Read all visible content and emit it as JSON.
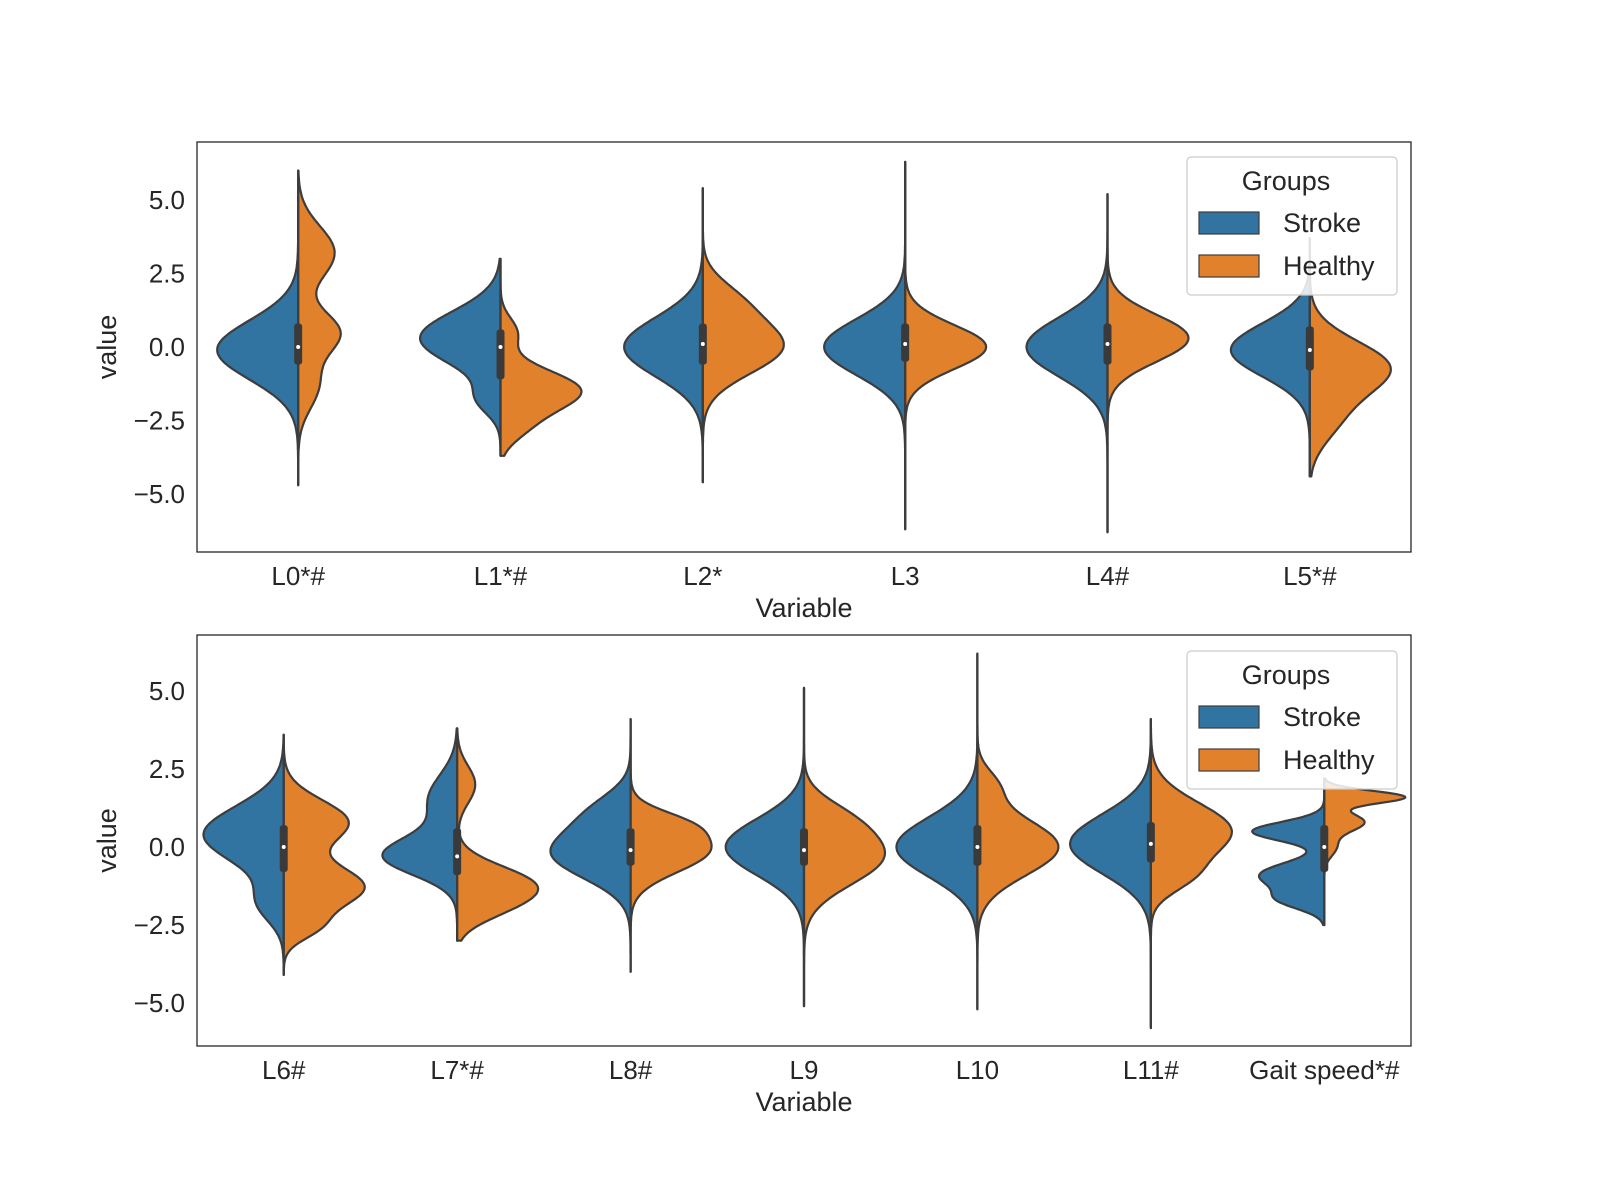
{
  "colors": {
    "stroke": "#3274a1",
    "healthy": "#e1812c",
    "outline": "#3d3d3d",
    "frame": "#262626"
  },
  "chart_data": [
    {
      "type": "violin",
      "xlabel": "Variable",
      "ylabel": "value",
      "ylim": [
        -6.8,
        6.9
      ],
      "yticks": [
        5.0,
        2.5,
        0.0,
        -2.5,
        -5.0
      ],
      "ytick_labels": [
        "5.0",
        "2.5",
        "0.0",
        "−2.5",
        "−5.0"
      ],
      "categories": [
        "L0*#",
        "L1*#",
        "L2*",
        "L3",
        "L4#",
        "L5*#"
      ],
      "legend": {
        "title": "Groups",
        "position": "upper right",
        "entries": [
          "Stroke",
          "Healthy"
        ]
      },
      "series": [
        {
          "name": "Stroke",
          "violins": [
            {
              "min": -4.7,
              "max": 6.0,
              "peaks": [
                [
                  -0.1,
                  1.0,
                  1.0
                ]
              ]
            },
            {
              "min": -3.7,
              "max": 3.0,
              "peaks": [
                [
                  0.3,
                  0.9,
                  1.0
                ],
                [
                  -1.8,
                  0.5,
                  0.25
                ]
              ]
            },
            {
              "min": -4.6,
              "max": 5.4,
              "peaks": [
                [
                  0.0,
                  1.0,
                  1.0
                ]
              ]
            },
            {
              "min": -6.2,
              "max": 6.3,
              "peaks": [
                [
                  0.0,
                  0.95,
                  1.0
                ]
              ]
            },
            {
              "min": -6.3,
              "max": 5.2,
              "peaks": [
                [
                  0.0,
                  1.0,
                  1.0
                ]
              ]
            },
            {
              "min": -4.4,
              "max": 3.7,
              "peaks": [
                [
                  -0.1,
                  0.9,
                  1.0
                ]
              ]
            }
          ],
          "box": [
            [
              -0.6,
              0.0,
              0.8
            ],
            [
              -1.1,
              0.0,
              0.6
            ],
            [
              -0.6,
              0.1,
              0.8
            ],
            [
              -0.5,
              0.1,
              0.8
            ],
            [
              -0.6,
              0.1,
              0.8
            ],
            [
              -0.8,
              -0.1,
              0.7
            ]
          ]
        },
        {
          "name": "Healthy",
          "violins": [
            {
              "min": -4.7,
              "max": 6.0,
              "peaks": [
                [
                  0.5,
                  0.7,
                  0.5
                ],
                [
                  3.2,
                  0.9,
                  0.45
                ],
                [
                  -1.3,
                  0.8,
                  0.25
                ]
              ]
            },
            {
              "min": -3.7,
              "max": 3.0,
              "peaks": [
                [
                  -1.5,
                  0.7,
                  1.0
                ],
                [
                  0.5,
                  0.5,
                  0.2
                ],
                [
                  -2.8,
                  0.5,
                  0.2
                ]
              ]
            },
            {
              "min": -4.6,
              "max": 5.4,
              "peaks": [
                [
                  0.0,
                  0.9,
                  1.0
                ],
                [
                  1.6,
                  0.7,
                  0.35
                ]
              ]
            },
            {
              "min": -6.2,
              "max": 6.3,
              "peaks": [
                [
                  0.0,
                  0.75,
                  1.0
                ]
              ]
            },
            {
              "min": -6.3,
              "max": 5.2,
              "peaks": [
                [
                  0.3,
                  0.8,
                  1.0
                ]
              ]
            },
            {
              "min": -4.4,
              "max": 3.7,
              "peaks": [
                [
                  -0.7,
                  0.9,
                  1.0
                ],
                [
                  -2.5,
                  0.8,
                  0.3
                ]
              ]
            }
          ]
        }
      ]
    },
    {
      "type": "violin",
      "xlabel": "Variable",
      "ylabel": "value",
      "ylim": [
        -6.3,
        6.5
      ],
      "yticks": [
        5.0,
        2.5,
        0.0,
        -2.5,
        -5.0
      ],
      "ytick_labels": [
        "5.0",
        "2.5",
        "0.0",
        "−2.5",
        "−5.0"
      ],
      "categories": [
        "L6#",
        "L7*#",
        "L8#",
        "L9",
        "L10",
        "L11#",
        "Gait speed*#"
      ],
      "legend": {
        "title": "Groups",
        "position": "upper right",
        "entries": [
          "Stroke",
          "Healthy"
        ]
      },
      "series": [
        {
          "name": "Stroke",
          "violins": [
            {
              "min": -4.1,
              "max": 3.6,
              "peaks": [
                [
                  0.4,
                  0.9,
                  1.0
                ],
                [
                  -1.8,
                  0.6,
                  0.3
                ]
              ]
            },
            {
              "min": -3.0,
              "max": 3.8,
              "peaks": [
                [
                  -0.3,
                  0.6,
                  1.0
                ],
                [
                  1.5,
                  0.8,
                  0.4
                ]
              ]
            },
            {
              "min": -4.0,
              "max": 4.1,
              "peaks": [
                [
                  -0.2,
                  0.8,
                  1.0
                ],
                [
                  1.2,
                  0.6,
                  0.35
                ]
              ]
            },
            {
              "min": -5.1,
              "max": 5.1,
              "peaks": [
                [
                  0.0,
                  0.9,
                  1.0
                ]
              ]
            },
            {
              "min": -5.2,
              "max": 6.2,
              "peaks": [
                [
                  0.0,
                  0.95,
                  1.0
                ]
              ]
            },
            {
              "min": -5.8,
              "max": 4.1,
              "peaks": [
                [
                  0.1,
                  0.95,
                  1.0
                ]
              ]
            },
            {
              "min": -2.5,
              "max": 2.2,
              "peaks": [
                [
                  0.5,
                  0.3,
                  0.9
                ],
                [
                  -0.9,
                  0.4,
                  0.8
                ],
                [
                  -1.7,
                  0.3,
                  0.5
                ]
              ]
            }
          ],
          "box": [
            [
              -0.8,
              0.0,
              0.7
            ],
            [
              -0.9,
              -0.3,
              0.6
            ],
            [
              -0.6,
              -0.1,
              0.6
            ],
            [
              -0.6,
              -0.1,
              0.6
            ],
            [
              -0.6,
              0.0,
              0.7
            ],
            [
              -0.5,
              0.1,
              0.8
            ],
            [
              -0.8,
              0.0,
              0.7
            ]
          ]
        },
        {
          "name": "Healthy",
          "violins": [
            {
              "min": -4.1,
              "max": 3.6,
              "peaks": [
                [
                  0.8,
                  0.7,
                  0.8
                ],
                [
                  -1.3,
                  0.7,
                  1.0
                ],
                [
                  -2.6,
                  0.4,
                  0.3
                ]
              ]
            },
            {
              "min": -3.0,
              "max": 3.8,
              "peaks": [
                [
                  -1.2,
                  0.6,
                  1.0
                ],
                [
                  2.0,
                  0.6,
                  0.25
                ],
                [
                  -2.0,
                  0.5,
                  0.35
                ]
              ]
            },
            {
              "min": -4.0,
              "max": 4.1,
              "peaks": [
                [
                  -0.1,
                  0.7,
                  1.0
                ],
                [
                  0.8,
                  0.4,
                  0.35
                ]
              ]
            },
            {
              "min": -5.1,
              "max": 5.1,
              "peaks": [
                [
                  -0.3,
                  0.9,
                  1.0
                ],
                [
                  1.0,
                  0.6,
                  0.3
                ]
              ]
            },
            {
              "min": -5.2,
              "max": 6.2,
              "peaks": [
                [
                  0.0,
                  0.9,
                  1.0
                ],
                [
                  2.0,
                  0.5,
                  0.2
                ]
              ]
            },
            {
              "min": -5.8,
              "max": 4.1,
              "peaks": [
                [
                  0.5,
                  0.9,
                  1.0
                ],
                [
                  -1.0,
                  0.5,
                  0.3
                ]
              ]
            },
            {
              "min": -2.5,
              "max": 2.2,
              "peaks": [
                [
                  1.6,
                  0.2,
                  1.0
                ],
                [
                  0.8,
                  0.3,
                  0.5
                ],
                [
                  0.0,
                  0.3,
                  0.15
                ]
              ]
            }
          ]
        }
      ]
    }
  ]
}
